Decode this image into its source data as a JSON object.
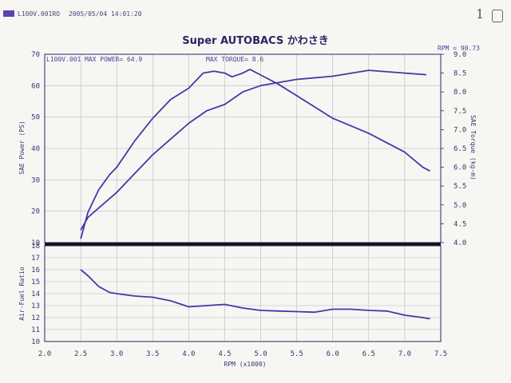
{
  "header": {
    "file_id": "L100V.001RO",
    "timestamp": "2005/05/04 14:01:20",
    "page_note": "1"
  },
  "colors": {
    "curve": "#4a35a8",
    "grid": "#b8b8c0",
    "frame": "#2a2560",
    "swatch": "#5a44b0"
  },
  "chart_data": [
    {
      "type": "line",
      "title": "Super AUTOBACS かわさき",
      "annotations": {
        "file_label": "L100V.001",
        "max_power": "MAX POWER= 64.9",
        "max_torque": "MAX TORQUE= 8.6",
        "rpm_readout": "RPM = 90.73"
      },
      "xlabel": "RPM (x1000)",
      "ylabel": "SAE Power (PS)",
      "ylabel_right": "SAE Torque (kg-m)",
      "xlim": [
        2.0,
        7.5
      ],
      "ylim": [
        10,
        70
      ],
      "ylim_right": [
        4.0,
        9.0
      ],
      "x_ticks": [
        "2.0",
        "2.5",
        "3.0",
        "3.5",
        "4.0",
        "4.5",
        "5.0",
        "5.5",
        "6.0",
        "6.5",
        "7.0",
        "7.5"
      ],
      "y_ticks": [
        "10",
        "20",
        "30",
        "40",
        "50",
        "60",
        "70"
      ],
      "y_ticks_right": [
        "4.0",
        "4.5",
        "5.0",
        "5.5",
        "6.0",
        "6.5",
        "7.0",
        "7.5",
        "8.0",
        "8.5",
        "9.0"
      ],
      "grid": true,
      "series": [
        {
          "axis": "left",
          "x": [
            2.5,
            2.6,
            2.75,
            2.9,
            3.0,
            3.25,
            3.5,
            3.75,
            4.0,
            4.25,
            4.5,
            4.75,
            5.0,
            5.25,
            5.5,
            6.0,
            6.5,
            7.0,
            7.3
          ],
          "y": [
            14,
            18,
            21,
            24,
            26,
            32,
            38,
            43,
            48,
            52,
            54,
            58,
            60,
            61,
            62,
            63,
            64.9,
            64,
            63.5
          ]
        },
        {
          "axis": "right",
          "x": [
            2.5,
            2.6,
            2.75,
            2.9,
            3.0,
            3.25,
            3.5,
            3.75,
            4.0,
            4.2,
            4.35,
            4.5,
            4.6,
            4.75,
            4.85,
            5.0,
            5.25,
            5.5,
            6.0,
            6.5,
            7.0,
            7.25,
            7.35
          ],
          "y": [
            4.1,
            4.8,
            5.4,
            5.8,
            6.0,
            6.7,
            7.3,
            7.8,
            8.1,
            8.5,
            8.55,
            8.5,
            8.4,
            8.5,
            8.6,
            8.45,
            8.2,
            7.9,
            7.3,
            6.9,
            6.4,
            6.0,
            5.9
          ]
        }
      ]
    },
    {
      "type": "line",
      "ylabel": "Air-Fuel Ratio",
      "xlim": [
        2.0,
        7.5
      ],
      "ylim": [
        10,
        18
      ],
      "y_ticks": [
        "10",
        "11",
        "12",
        "13",
        "14",
        "15",
        "16",
        "17",
        "18"
      ],
      "grid": true,
      "series": [
        {
          "x": [
            2.5,
            2.6,
            2.75,
            2.9,
            3.0,
            3.25,
            3.5,
            3.75,
            4.0,
            4.25,
            4.5,
            4.75,
            5.0,
            5.25,
            5.5,
            5.75,
            6.0,
            6.25,
            6.5,
            6.75,
            7.0,
            7.25,
            7.35
          ],
          "y": [
            16.0,
            15.5,
            14.6,
            14.1,
            14.0,
            13.8,
            13.7,
            13.4,
            12.9,
            13.0,
            13.1,
            12.8,
            12.6,
            12.55,
            12.5,
            12.45,
            12.7,
            12.7,
            12.6,
            12.55,
            12.2,
            12.0,
            11.9
          ]
        }
      ]
    }
  ]
}
